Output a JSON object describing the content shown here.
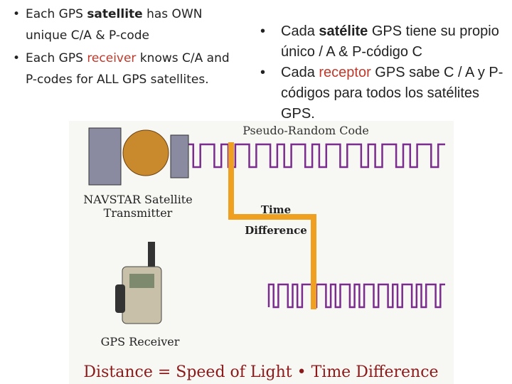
{
  "left_bullets": [
    [
      "Each GPS ",
      "satellite",
      " has OWN unique C/A & P-code"
    ],
    [
      "Each GPS ",
      "receiver",
      " knows C/A and P-codes for ALL GPS satellites."
    ]
  ],
  "right_bullets": [
    [
      "Cada ",
      "satélite",
      " GPS tiene su propio único / A & P-código C"
    ],
    [
      "Cada ",
      "receptor",
      " GPS sabe C / A y P-códigos para todos los satélites GPS."
    ]
  ],
  "diagram": {
    "code_label": "Pseudo-Random Code",
    "satellite_label": [
      "NAVSTAR Satellite",
      "Transmitter"
    ],
    "time_label": [
      "Time",
      "Difference"
    ],
    "receiver_label": "GPS Receiver",
    "formula": "Distance = Speed of Light • Time Difference"
  }
}
